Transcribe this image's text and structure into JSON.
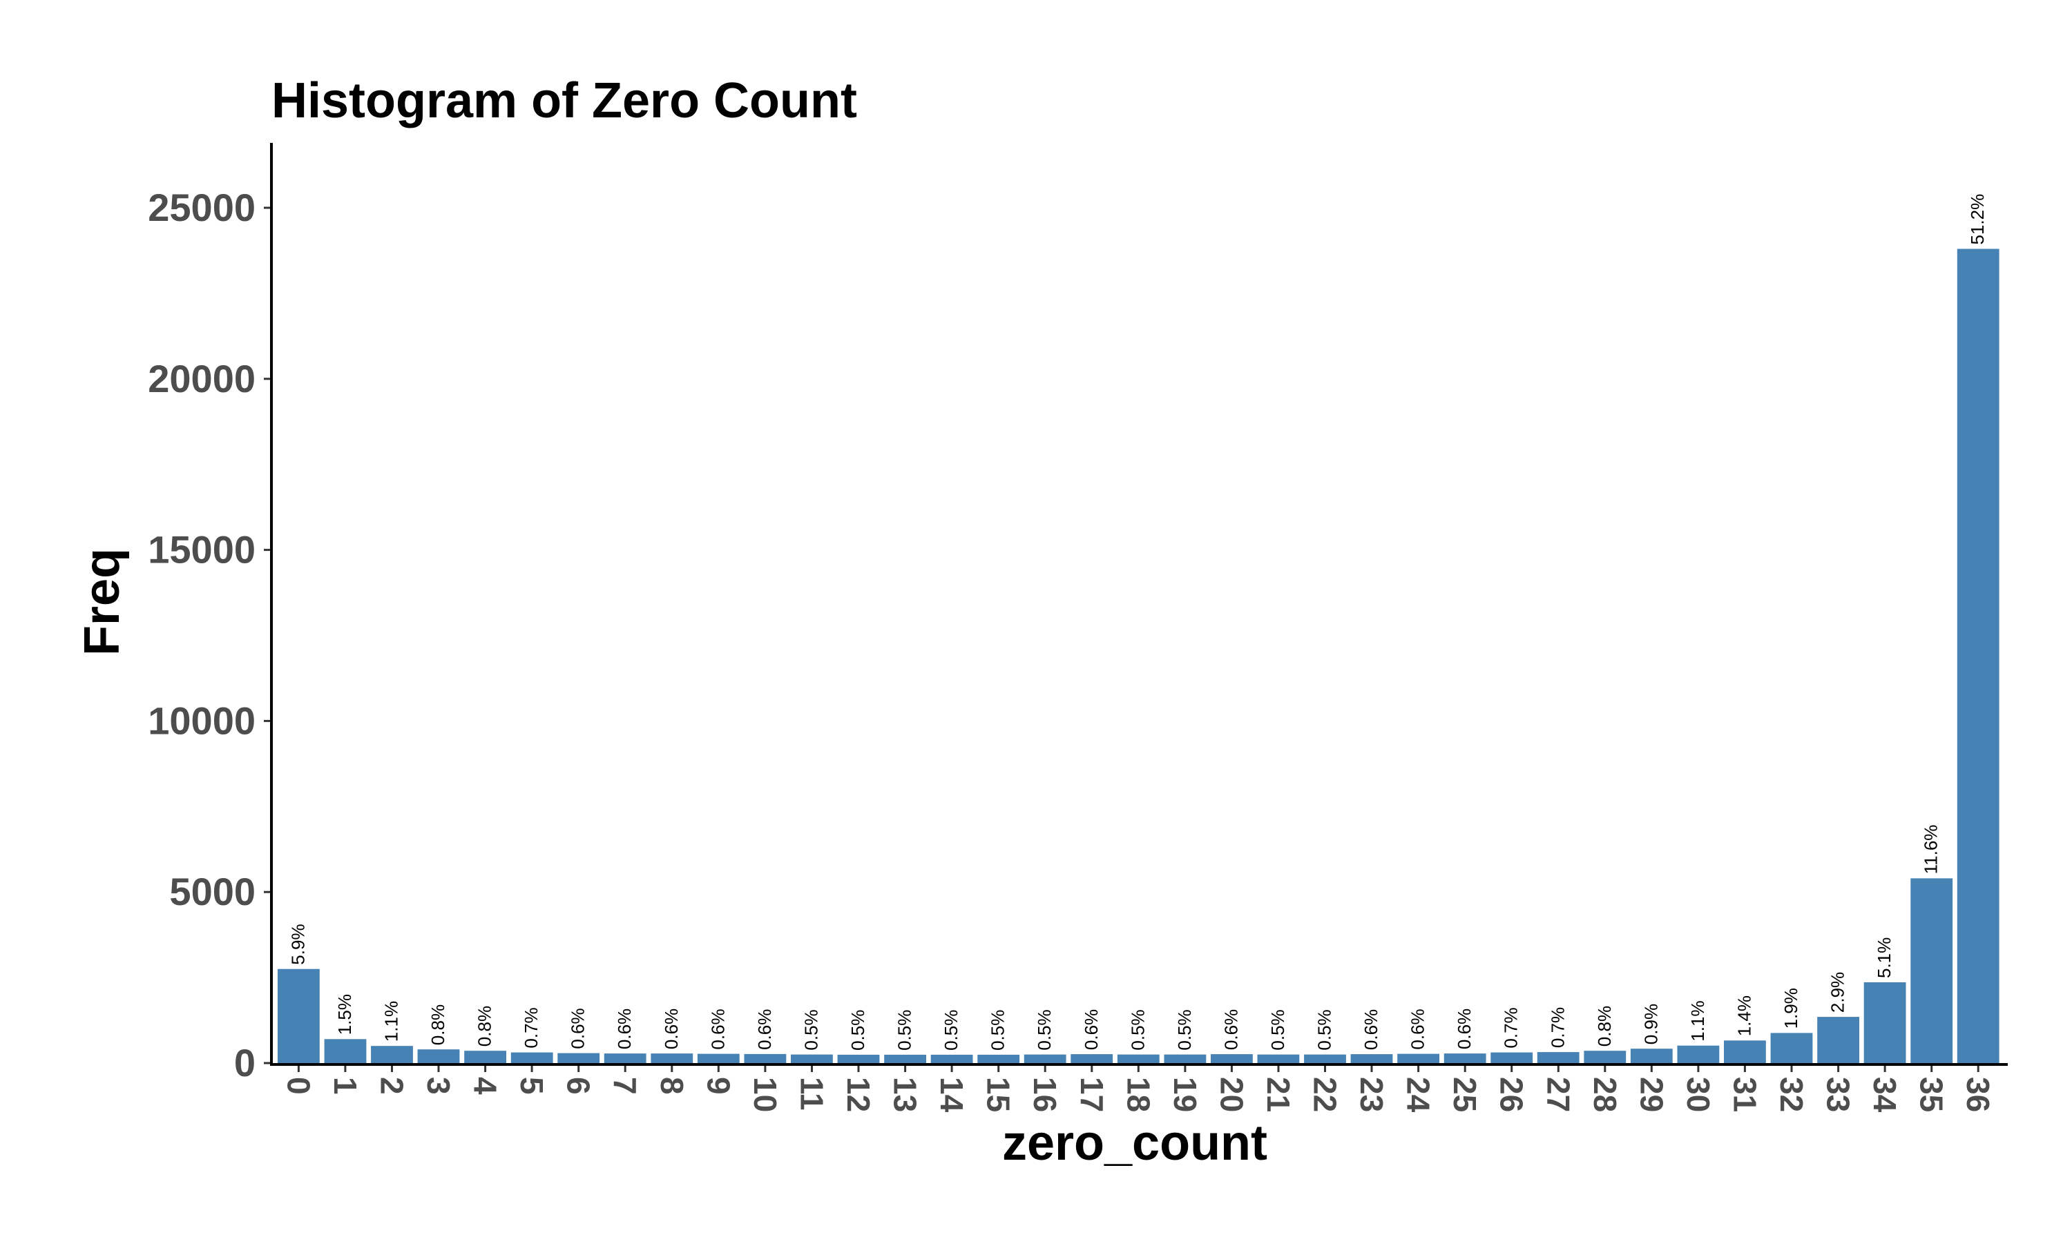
{
  "chart_data": {
    "type": "bar",
    "title": "Histogram of Zero Count",
    "xlabel": "zero_count",
    "ylabel": "Freq",
    "categories": [
      "0",
      "1",
      "2",
      "3",
      "4",
      "5",
      "6",
      "7",
      "8",
      "9",
      "10",
      "11",
      "12",
      "13",
      "14",
      "15",
      "16",
      "17",
      "18",
      "19",
      "20",
      "21",
      "22",
      "23",
      "24",
      "25",
      "26",
      "27",
      "28",
      "29",
      "30",
      "31",
      "32",
      "33",
      "34",
      "35",
      "36"
    ],
    "values": [
      2750,
      700,
      500,
      400,
      360,
      310,
      290,
      280,
      280,
      270,
      265,
      250,
      245,
      245,
      245,
      245,
      250,
      260,
      250,
      250,
      260,
      250,
      250,
      260,
      270,
      280,
      310,
      320,
      360,
      420,
      510,
      660,
      880,
      1350,
      2360,
      5400,
      23800
    ],
    "labels": [
      "5.9%",
      "1.5%",
      "1.1%",
      "0.8%",
      "0.8%",
      "0.7%",
      "0.6%",
      "0.6%",
      "0.6%",
      "0.6%",
      "0.6%",
      "0.5%",
      "0.5%",
      "0.5%",
      "0.5%",
      "0.5%",
      "0.5%",
      "0.6%",
      "0.5%",
      "0.5%",
      "0.6%",
      "0.5%",
      "0.5%",
      "0.6%",
      "0.6%",
      "0.6%",
      "0.7%",
      "0.7%",
      "0.8%",
      "0.9%",
      "1.1%",
      "1.4%",
      "1.9%",
      "2.9%",
      "5.1%",
      "11.6%",
      "51.2%"
    ],
    "yticks": [
      0,
      5000,
      10000,
      15000,
      20000,
      25000
    ],
    "ylim": [
      0,
      25000
    ],
    "grid": false,
    "legend": "none",
    "colors": {
      "bar": "#4682b4",
      "axis": "#000000",
      "tick_text": "#4d4d4d",
      "title_text": "#000000"
    }
  }
}
